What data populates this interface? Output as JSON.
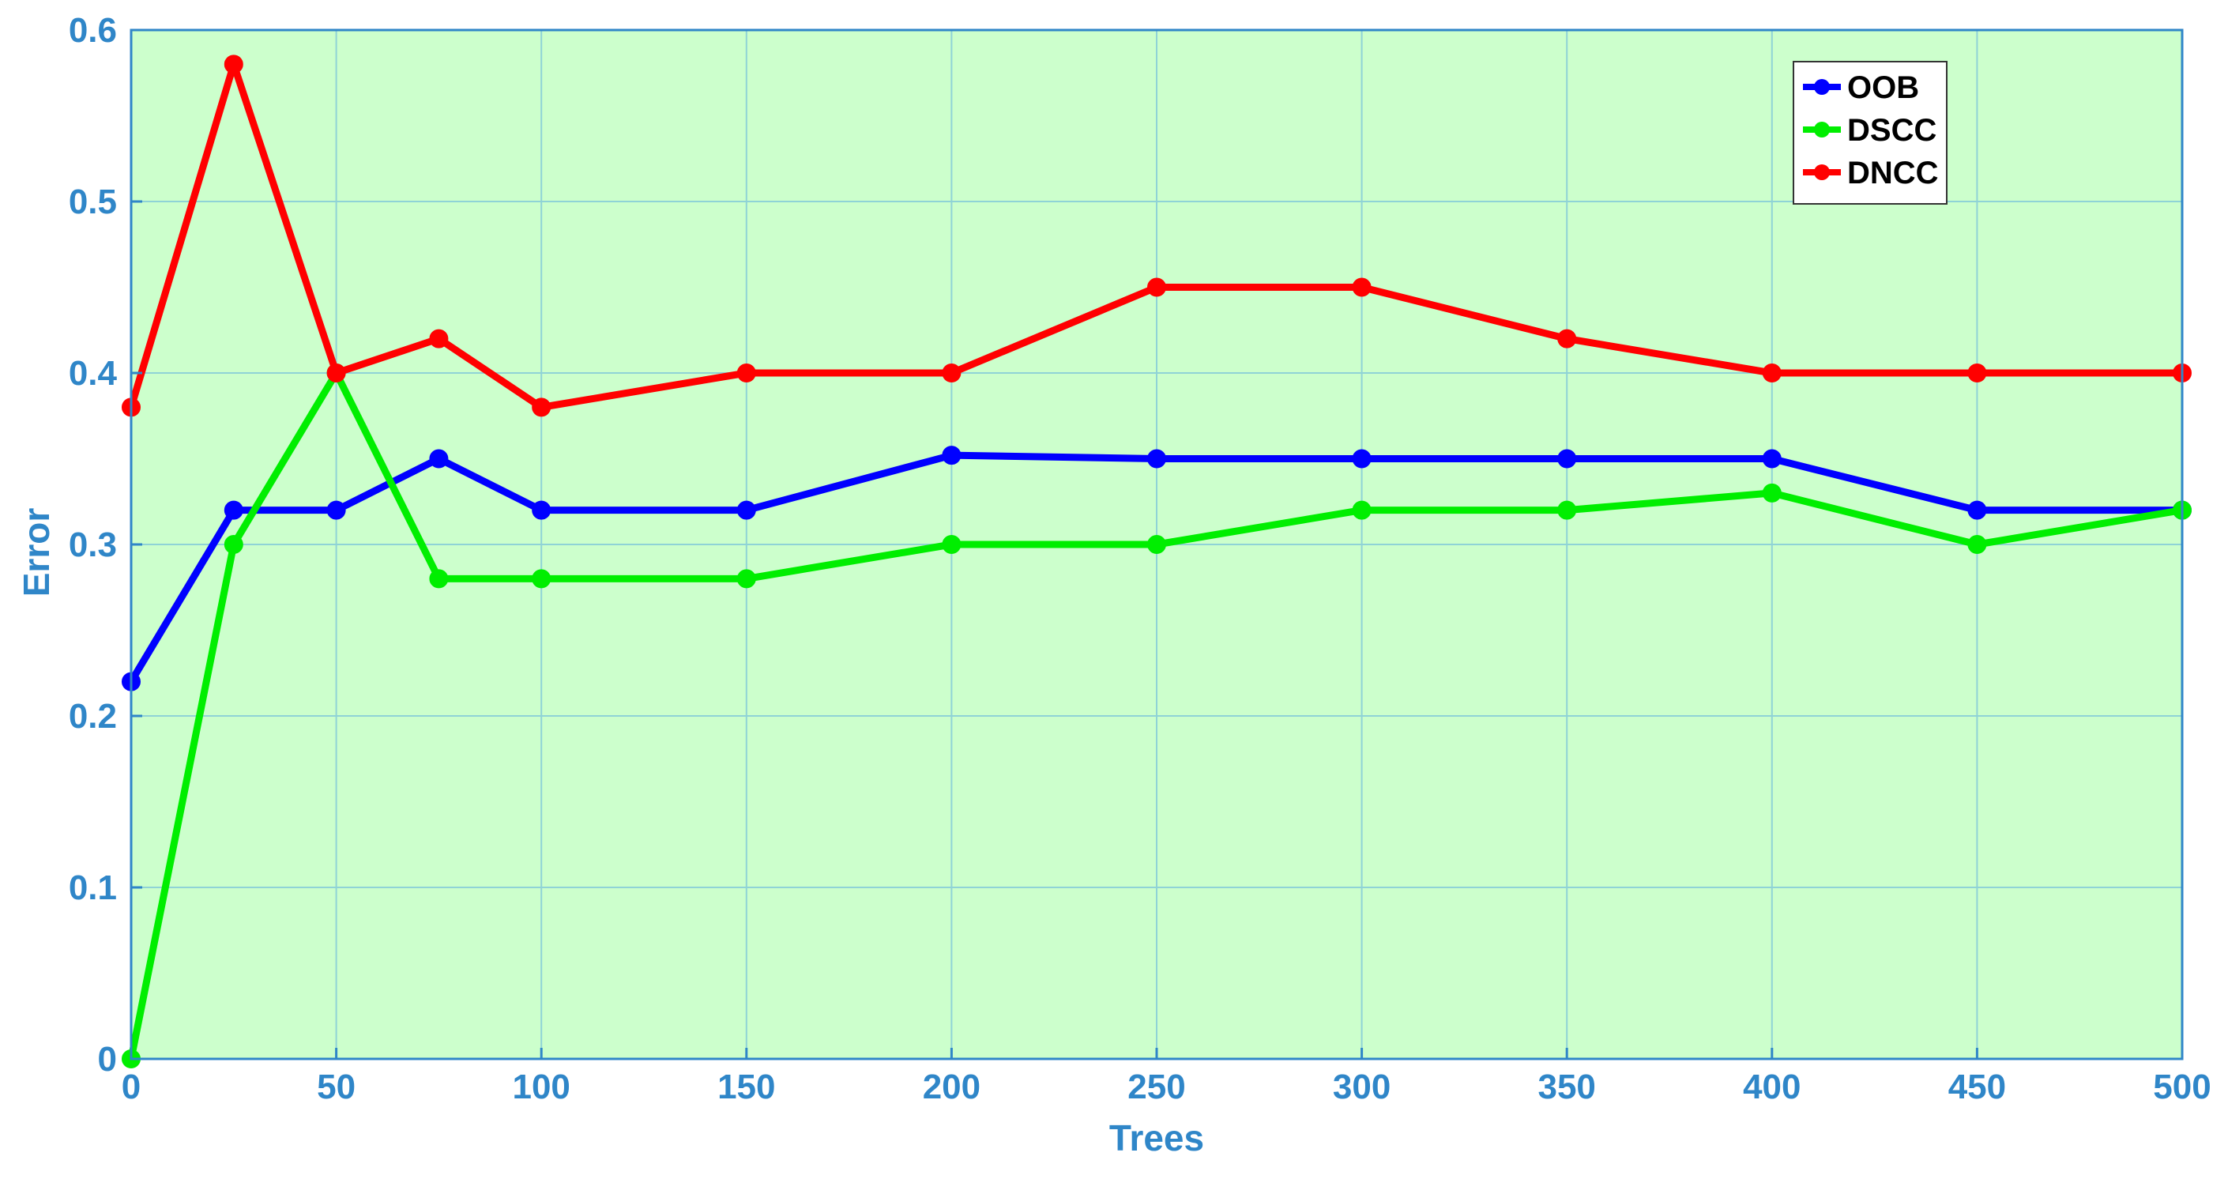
{
  "chart_data": {
    "type": "line",
    "x": [
      0,
      25,
      50,
      75,
      100,
      150,
      200,
      250,
      300,
      350,
      400,
      450,
      500
    ],
    "series": [
      {
        "name": "OOB",
        "color": "#0000ff",
        "values": [
          0.22,
          0.32,
          0.32,
          0.35,
          0.32,
          0.32,
          0.352,
          0.35,
          0.35,
          0.35,
          0.35,
          0.32,
          0.32
        ]
      },
      {
        "name": "DSCC",
        "color": "#00ee00",
        "values": [
          0.0,
          0.3,
          0.4,
          0.28,
          0.28,
          0.28,
          0.3,
          0.3,
          0.32,
          0.32,
          0.33,
          0.3,
          0.32
        ]
      },
      {
        "name": "DNCC",
        "color": "#ff0000",
        "values": [
          0.38,
          0.58,
          0.4,
          0.42,
          0.38,
          0.4,
          0.4,
          0.45,
          0.45,
          0.42,
          0.4,
          0.4,
          0.4
        ]
      }
    ],
    "xlabel": "Trees",
    "ylabel": "Error",
    "xlim": [
      0,
      500
    ],
    "ylim": [
      0,
      0.6
    ],
    "xticks": [
      0,
      50,
      100,
      150,
      200,
      250,
      300,
      350,
      400,
      450,
      500
    ],
    "yticks": [
      0,
      0.1,
      0.2,
      0.3,
      0.4,
      0.5,
      0.6
    ],
    "xtick_labels": [
      "0",
      "50",
      "100",
      "150",
      "200",
      "250",
      "300",
      "350",
      "400",
      "450",
      "500"
    ],
    "ytick_labels": [
      "0",
      "0.1",
      "0.2",
      "0.3",
      "0.4",
      "0.5",
      "0.6"
    ],
    "grid": true,
    "legend_position": "top-right",
    "plot_background": "#ccffcc",
    "grid_color": "#8fd3d6",
    "axis_color": "#2f86c8"
  }
}
